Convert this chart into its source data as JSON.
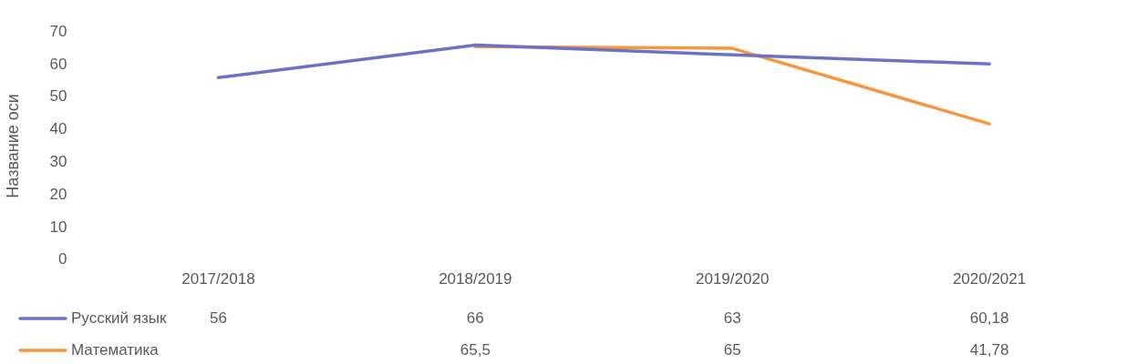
{
  "chart_data": {
    "type": "line",
    "ylabel": "Название оси",
    "categories": [
      "2017/2018",
      "2018/2019",
      "2019/2020",
      "2020/2021"
    ],
    "series": [
      {
        "name": "Русский язык",
        "color": "#6b70c9",
        "values": [
          56,
          66,
          63,
          60.18
        ],
        "value_labels": [
          "56",
          "66",
          "63",
          "60,18"
        ]
      },
      {
        "name": "Математика",
        "color": "#f7963a",
        "values": [
          null,
          65.5,
          65,
          41.78
        ],
        "value_labels": [
          null,
          "65,5",
          "65",
          "41,78"
        ]
      }
    ],
    "ylim": [
      0,
      70
    ],
    "yticks": [
      0,
      10,
      20,
      30,
      40,
      50,
      60,
      70
    ],
    "grid": false,
    "legend": "bottom",
    "marker": "none",
    "line_style": "solid"
  }
}
